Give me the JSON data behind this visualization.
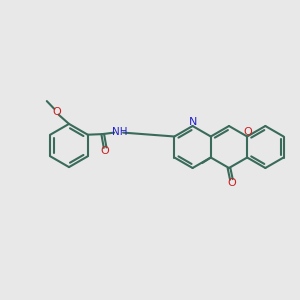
{
  "bg_color": "#e8e8e8",
  "bond_color": "#3a6b5a",
  "N_color": "#2222cc",
  "O_color": "#cc2222",
  "font_size": 8.0,
  "lw": 1.5,
  "figsize": [
    3.0,
    3.0
  ],
  "dpi": 100
}
